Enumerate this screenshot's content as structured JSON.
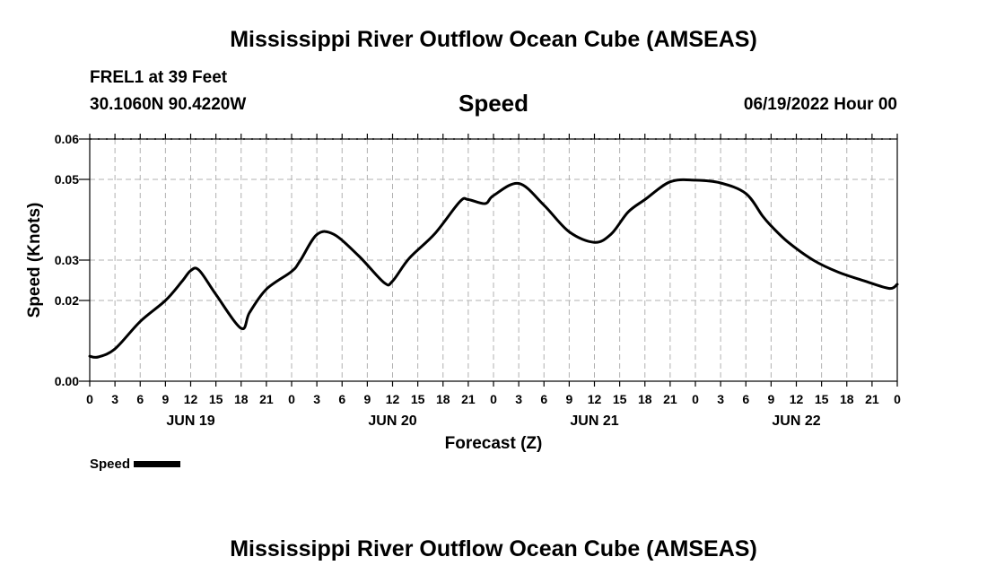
{
  "header": {
    "title": "Mississippi River Outflow Ocean Cube (AMSEAS)",
    "station": "FREL1 at 39 Feet",
    "position": "30.1060N  90.4220W",
    "variable": "Speed",
    "datetime": "06/19/2022 Hour 00"
  },
  "footer": {
    "title": "Mississippi River Outflow Ocean Cube (AMSEAS)"
  },
  "legend": {
    "label": "Speed"
  },
  "chart_data": {
    "type": "line",
    "title": "Speed",
    "xlabel": "Forecast (Z)",
    "ylabel": "Speed (Knots)",
    "xlim": [
      0,
      96
    ],
    "ylim": [
      0.0,
      0.06
    ],
    "yticks": [
      0.0,
      0.02,
      0.03,
      0.05,
      0.06
    ],
    "ytick_labels": [
      "0.00",
      "0.02",
      "0.03",
      "0.05",
      "0.06"
    ],
    "xtick_labels": [
      "0",
      "3",
      "6",
      "9",
      "12",
      "15",
      "18",
      "21",
      "0",
      "3",
      "6",
      "9",
      "12",
      "15",
      "18",
      "21",
      "0",
      "3",
      "6",
      "9",
      "12",
      "15",
      "18",
      "21",
      "0",
      "3",
      "6",
      "9",
      "12",
      "15",
      "18",
      "21",
      "0"
    ],
    "day_labels": [
      {
        "label": "JUN 19",
        "hour": 12
      },
      {
        "label": "JUN 20",
        "hour": 36
      },
      {
        "label": "JUN 21",
        "hour": 60
      },
      {
        "label": "JUN 22",
        "hour": 84
      }
    ],
    "grid": true,
    "series": [
      {
        "name": "Speed",
        "x": [
          0,
          1,
          3,
          6,
          9,
          11,
          12,
          13,
          15,
          18,
          19,
          21,
          24,
          25,
          27,
          29,
          32,
          35,
          36,
          38,
          41,
          44,
          45,
          47,
          48,
          51,
          54,
          57,
          60,
          62,
          64,
          66,
          69,
          72,
          75,
          78,
          80,
          81,
          83,
          86,
          89,
          92,
          95,
          96
        ],
        "values": [
          0.0062,
          0.006,
          0.008,
          0.0148,
          0.02,
          0.0248,
          0.0274,
          0.0275,
          0.0215,
          0.0131,
          0.017,
          0.0228,
          0.0272,
          0.0298,
          0.0363,
          0.0364,
          0.031,
          0.0244,
          0.0248,
          0.0305,
          0.0365,
          0.0445,
          0.045,
          0.044,
          0.046,
          0.049,
          0.0436,
          0.037,
          0.0344,
          0.0365,
          0.0419,
          0.045,
          0.0494,
          0.0498,
          0.0491,
          0.0465,
          0.0409,
          0.0385,
          0.0345,
          0.03,
          0.027,
          0.0249,
          0.023,
          0.024
        ]
      }
    ]
  }
}
